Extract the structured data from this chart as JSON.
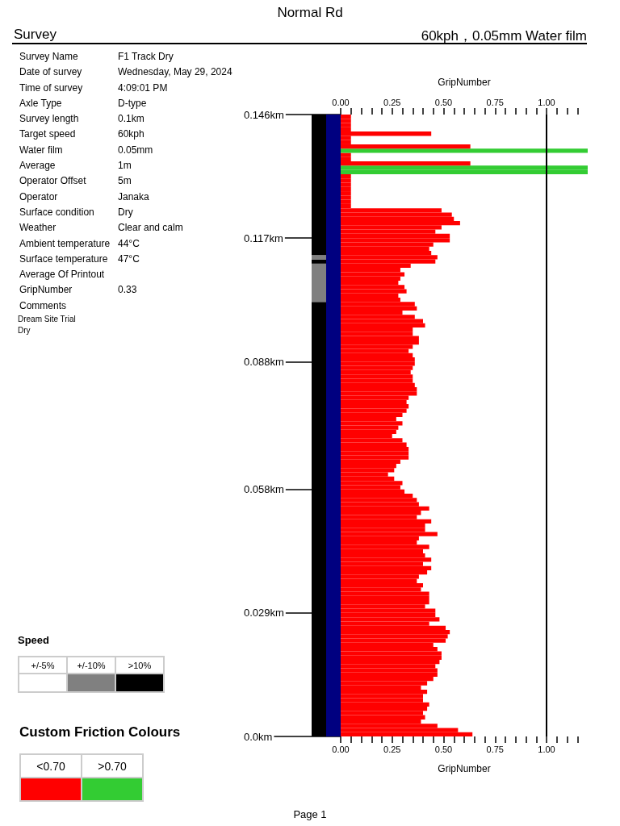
{
  "chart_data": [
    {
      "type": "bar",
      "title": "Normal Rd",
      "orientation": "horizontal",
      "xlabel": "GripNumber",
      "x2label": "GripNumber",
      "annotations": [
        "60kph，0.05mm Water film",
        "Speed",
        "+/-5%",
        "+/-10%",
        ">10%",
        "Custom Friction Colours",
        "<0.70",
        ">0.70",
        "Page 1"
      ],
      "x": [
        0.0005,
        0.0015,
        0.0025,
        0.0035,
        0.0045,
        0.0055,
        0.0065,
        0.0075,
        0.0085,
        0.0095,
        0.0105,
        0.0115,
        0.0125,
        0.0135,
        0.0145,
        0.0155,
        0.0165,
        0.0175,
        0.0185,
        0.0195,
        0.0205,
        0.0215,
        0.0225,
        0.0235,
        0.0245,
        0.0255,
        0.0265,
        0.0275,
        0.0285,
        0.0295,
        0.0305,
        0.0315,
        0.0325,
        0.0335,
        0.0345,
        0.0355,
        0.0365,
        0.0375,
        0.0385,
        0.0395,
        0.0405,
        0.0415,
        0.0425,
        0.0435,
        0.0445,
        0.0455,
        0.0465,
        0.0475,
        0.0485,
        0.0495,
        0.0505,
        0.0515,
        0.0525,
        0.0535,
        0.0545,
        0.0555,
        0.0565,
        0.0575,
        0.0585,
        0.0595,
        0.0605,
        0.0615,
        0.0625,
        0.0635,
        0.0645,
        0.0655,
        0.0665,
        0.0675,
        0.0685,
        0.0695,
        0.0705,
        0.0715,
        0.0725,
        0.0735,
        0.0745,
        0.0755,
        0.0765,
        0.0775,
        0.0785,
        0.0795,
        0.0805,
        0.0815,
        0.0825,
        0.0835,
        0.0845,
        0.0855,
        0.0865,
        0.0875,
        0.0885,
        0.0895,
        0.0905,
        0.0915,
        0.0925,
        0.0935,
        0.0945,
        0.0955,
        0.0965,
        0.0975,
        0.0985,
        0.0995,
        0.1005,
        0.1015,
        0.1025,
        0.1035,
        0.1045,
        0.1055,
        0.1065,
        0.1075,
        0.1085,
        0.1095,
        0.1105,
        0.1115,
        0.1125,
        0.1135,
        0.1145,
        0.1155,
        0.1165,
        0.1175,
        0.1185,
        0.1195,
        0.1205,
        0.1215,
        0.1225,
        0.1235,
        0.1245,
        0.1255,
        0.1265,
        0.1275,
        0.1285,
        0.1295,
        0.1305,
        0.1315,
        0.1325,
        0.1335,
        0.1345,
        0.1355,
        0.1365,
        0.1375,
        0.1385,
        0.1395,
        0.1405,
        0.1415,
        0.1425,
        0.1435,
        0.1445,
        0.1455
      ],
      "values": [
        0.64,
        0.57,
        0.47,
        0.39,
        0.41,
        0.4,
        0.42,
        0.43,
        0.4,
        0.4,
        0.42,
        0.39,
        0.42,
        0.45,
        0.47,
        0.47,
        0.46,
        0.48,
        0.49,
        0.49,
        0.47,
        0.45,
        0.51,
        0.52,
        0.53,
        0.51,
        0.43,
        0.48,
        0.46,
        0.46,
        0.41,
        0.43,
        0.43,
        0.43,
        0.39,
        0.4,
        0.37,
        0.38,
        0.42,
        0.44,
        0.4,
        0.44,
        0.41,
        0.4,
        0.43,
        0.37,
        0.38,
        0.47,
        0.41,
        0.41,
        0.44,
        0.37,
        0.39,
        0.43,
        0.38,
        0.37,
        0.35,
        0.31,
        0.29,
        0.3,
        0.26,
        0.23,
        0.26,
        0.27,
        0.29,
        0.33,
        0.33,
        0.33,
        0.32,
        0.3,
        0.25,
        0.27,
        0.28,
        0.3,
        0.27,
        0.3,
        0.32,
        0.33,
        0.32,
        0.33,
        0.37,
        0.37,
        0.36,
        0.35,
        0.35,
        0.34,
        0.35,
        0.36,
        0.36,
        0.35,
        0.33,
        0.35,
        0.38,
        0.38,
        0.35,
        0.35,
        0.41,
        0.4,
        0.36,
        0.3,
        0.37,
        0.36,
        0.29,
        0.28,
        0.32,
        0.31,
        0.28,
        0.29,
        0.31,
        0.29,
        0.34,
        0.46,
        0.47,
        0.44,
        0.43,
        0.45,
        0.53,
        0.53,
        0.46,
        0.49,
        0.58,
        0.55,
        0.54,
        0.49,
        0.05,
        0.05,
        0.05,
        0.05,
        0.05,
        0.05,
        0.05,
        0.05,
        1.2,
        1.2,
        0.63,
        0.05,
        0.05,
        1.2,
        0.63,
        0.05,
        0.05,
        0.44,
        0.05,
        0.05,
        0.05,
        0.05
      ],
      "colors": [
        "#ff0000",
        "#ff0000",
        "#ff0000",
        "#ff0000",
        "#ff0000",
        "#ff0000",
        "#ff0000",
        "#ff0000",
        "#ff0000",
        "#ff0000",
        "#ff0000",
        "#ff0000",
        "#ff0000",
        "#ff0000",
        "#ff0000",
        "#ff0000",
        "#ff0000",
        "#ff0000",
        "#ff0000",
        "#ff0000",
        "#ff0000",
        "#ff0000",
        "#ff0000",
        "#ff0000",
        "#ff0000",
        "#ff0000",
        "#ff0000",
        "#ff0000",
        "#ff0000",
        "#ff0000",
        "#ff0000",
        "#ff0000",
        "#ff0000",
        "#ff0000",
        "#ff0000",
        "#ff0000",
        "#ff0000",
        "#ff0000",
        "#ff0000",
        "#ff0000",
        "#ff0000",
        "#ff0000",
        "#ff0000",
        "#ff0000",
        "#ff0000",
        "#ff0000",
        "#ff0000",
        "#ff0000",
        "#ff0000",
        "#ff0000",
        "#ff0000",
        "#ff0000",
        "#ff0000",
        "#ff0000",
        "#ff0000",
        "#ff0000",
        "#ff0000",
        "#ff0000",
        "#ff0000",
        "#ff0000",
        "#ff0000",
        "#ff0000",
        "#ff0000",
        "#ff0000",
        "#ff0000",
        "#ff0000",
        "#ff0000",
        "#ff0000",
        "#ff0000",
        "#ff0000",
        "#ff0000",
        "#ff0000",
        "#ff0000",
        "#ff0000",
        "#ff0000",
        "#ff0000",
        "#ff0000",
        "#ff0000",
        "#ff0000",
        "#ff0000",
        "#ff0000",
        "#ff0000",
        "#ff0000",
        "#ff0000",
        "#ff0000",
        "#ff0000",
        "#ff0000",
        "#ff0000",
        "#ff0000",
        "#ff0000",
        "#ff0000",
        "#ff0000",
        "#ff0000",
        "#ff0000",
        "#ff0000",
        "#ff0000",
        "#ff0000",
        "#ff0000",
        "#ff0000",
        "#ff0000",
        "#ff0000",
        "#ff0000",
        "#ff0000",
        "#ff0000",
        "#ff0000",
        "#ff0000",
        "#ff0000",
        "#ff0000",
        "#ff0000",
        "#ff0000",
        "#ff0000",
        "#ff0000",
        "#ff0000",
        "#ff0000",
        "#ff0000",
        "#ff0000",
        "#ff0000",
        "#ff0000",
        "#ff0000",
        "#ff0000",
        "#ff0000",
        "#ff0000",
        "#ff0000",
        "#ff0000",
        "#ff0000",
        "#ff0000",
        "#ff0000",
        "#ff0000",
        "#ff0000",
        "#ff0000",
        "#ff0000",
        "#ff0000",
        "#33cc33",
        "#33cc33",
        "#ff0000",
        "#ff0000",
        "#ff0000",
        "#33cc33",
        "#ff0000",
        "#ff0000",
        "#ff0000",
        "#ff0000",
        "#ff0000",
        "#ff0000",
        "#ff0000",
        "#ff0000"
      ],
      "xlim": [
        0,
        1.2
      ],
      "xticks": [
        {
          "value": 0,
          "label": "0.00"
        },
        {
          "value": 0.05,
          "label": null
        },
        {
          "value": 0.1,
          "label": null
        },
        {
          "value": 0.15,
          "label": null
        },
        {
          "value": 0.2,
          "label": null
        },
        {
          "value": 0.25,
          "label": "0.25"
        },
        {
          "value": 0.3,
          "label": null
        },
        {
          "value": 0.35,
          "label": null
        },
        {
          "value": 0.4,
          "label": null
        },
        {
          "value": 0.45,
          "label": null
        },
        {
          "value": 0.5,
          "label": "0.50"
        },
        {
          "value": 0.55,
          "label": null
        },
        {
          "value": 0.6,
          "label": null
        },
        {
          "value": 0.65,
          "label": null
        },
        {
          "value": 0.7,
          "label": null
        },
        {
          "value": 0.75,
          "label": "0.75"
        },
        {
          "value": 0.8,
          "label": null
        },
        {
          "value": 0.85,
          "label": null
        },
        {
          "value": 0.9,
          "label": null
        },
        {
          "value": 0.95,
          "label": null
        },
        {
          "value": 1,
          "label": "1.00"
        },
        {
          "value": 1.05,
          "label": null
        },
        {
          "value": 1.1,
          "label": null
        },
        {
          "value": 1.15,
          "label": null
        }
      ],
      "x2lim": [
        0,
        1.2
      ],
      "x2ticks": [
        {
          "value": 0,
          "label": "0.00"
        },
        {
          "value": 0.05,
          "label": null
        },
        {
          "value": 0.1,
          "label": null
        },
        {
          "value": 0.15,
          "label": null
        },
        {
          "value": 0.2,
          "label": null
        },
        {
          "value": 0.25,
          "label": "0.25"
        },
        {
          "value": 0.3,
          "label": null
        },
        {
          "value": 0.35,
          "label": null
        },
        {
          "value": 0.4,
          "label": null
        },
        {
          "value": 0.45,
          "label": null
        },
        {
          "value": 0.5,
          "label": "0.50"
        },
        {
          "value": 0.55,
          "label": null
        },
        {
          "value": 0.6,
          "label": null
        },
        {
          "value": 0.65,
          "label": null
        },
        {
          "value": 0.7,
          "label": null
        },
        {
          "value": 0.75,
          "label": "0.75"
        },
        {
          "value": 0.8,
          "label": null
        },
        {
          "value": 0.85,
          "label": null
        },
        {
          "value": 0.9,
          "label": null
        },
        {
          "value": 0.95,
          "label": null
        },
        {
          "value": 1,
          "label": "1.00"
        },
        {
          "value": 1.05,
          "label": null
        },
        {
          "value": 1.1,
          "label": null
        },
        {
          "value": 1.15,
          "label": null
        }
      ],
      "ylim": [
        0,
        0.146
      ],
      "yticks": [
        {
          "value": 0,
          "label": "0.0km"
        },
        {
          "value": 0.029,
          "label": "0.029km"
        },
        {
          "value": 0.058,
          "label": "0.058km"
        },
        {
          "value": 0.088,
          "label": "0.088km"
        },
        {
          "value": 0.117,
          "label": "0.117km"
        },
        {
          "value": 0.146,
          "label": "0.146km"
        }
      ],
      "ref_lines": [
        {
          "axis": "x",
          "value": 1,
          "color": "#000000"
        }
      ],
      "grid": false
    },
    {
      "type": "bar",
      "stacked": true,
      "categories": [
        null,
        null
      ],
      "ylim": [
        0,
        0.146
      ],
      "tick_labels": false,
      "series": [
        {
          "color": "#000000",
          "values": [
            0.102,
            null
          ]
        },
        {
          "color": "#808080",
          "values": [
            0.009,
            null
          ]
        },
        {
          "color": "#000000",
          "values": [
            0.001,
            null
          ]
        },
        {
          "color": "#808080",
          "values": [
            0.001,
            null
          ]
        },
        {
          "color": "#000000",
          "values": [
            0.033,
            null
          ]
        },
        {
          "color": "#000080",
          "values": [
            null,
            0.146
          ]
        }
      ]
    },
    {
      "type": "other",
      "title": "Survey",
      "categories": [
        "Survey Name",
        "Date of survey",
        "Time of survey",
        "Axle Type",
        "Survey length",
        "Target speed",
        "Water film",
        "Average",
        "Operator Offset",
        "Operator",
        "Surface condition",
        "Weather",
        "Ambient temperature",
        "Surface temperature",
        "Average Of Printout",
        "GripNumber",
        "Comments"
      ],
      "value_labels": [
        "F1 Track Dry",
        "Wednesday, May 29, 2024",
        "4:09:01 PM",
        "D-type",
        "0.1km",
        "60kph",
        "0.05mm",
        "1m",
        "5m",
        "Janaka",
        "Dry",
        "Clear and calm",
        "44°C",
        "47°C",
        null,
        "0.33",
        null
      ],
      "annotations": [
        "Dream Site Trial",
        "Dry"
      ]
    }
  ]
}
